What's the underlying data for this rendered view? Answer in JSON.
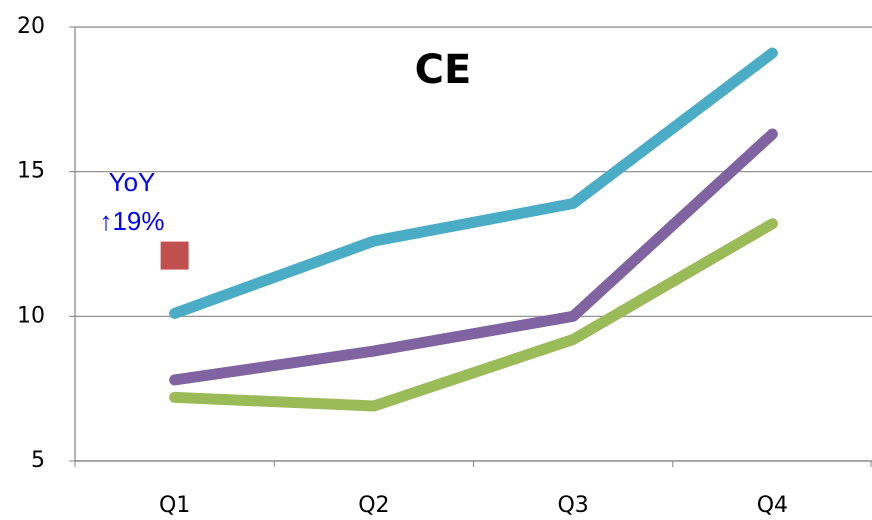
{
  "chart_data": {
    "type": "line",
    "title": "CE",
    "annotations": [
      "YoY",
      "↑19%"
    ],
    "categories": [
      "Q1",
      "Q2",
      "Q3",
      "Q4"
    ],
    "series": [
      {
        "color": "#4bacc6",
        "values": [
          10.1,
          12.6,
          13.9,
          19.1
        ]
      },
      {
        "color": "#8064a2",
        "values": [
          7.8,
          8.8,
          10.0,
          16.3
        ]
      },
      {
        "color": "#9bbb59",
        "values": [
          7.2,
          6.9,
          9.2,
          13.2
        ]
      },
      {
        "color": "#c0504d",
        "marker": "square",
        "values": [
          12.1,
          null,
          null,
          null
        ]
      }
    ],
    "ylim": [
      5,
      20
    ],
    "yticks": [
      5,
      10,
      15,
      20
    ],
    "grid": true
  }
}
